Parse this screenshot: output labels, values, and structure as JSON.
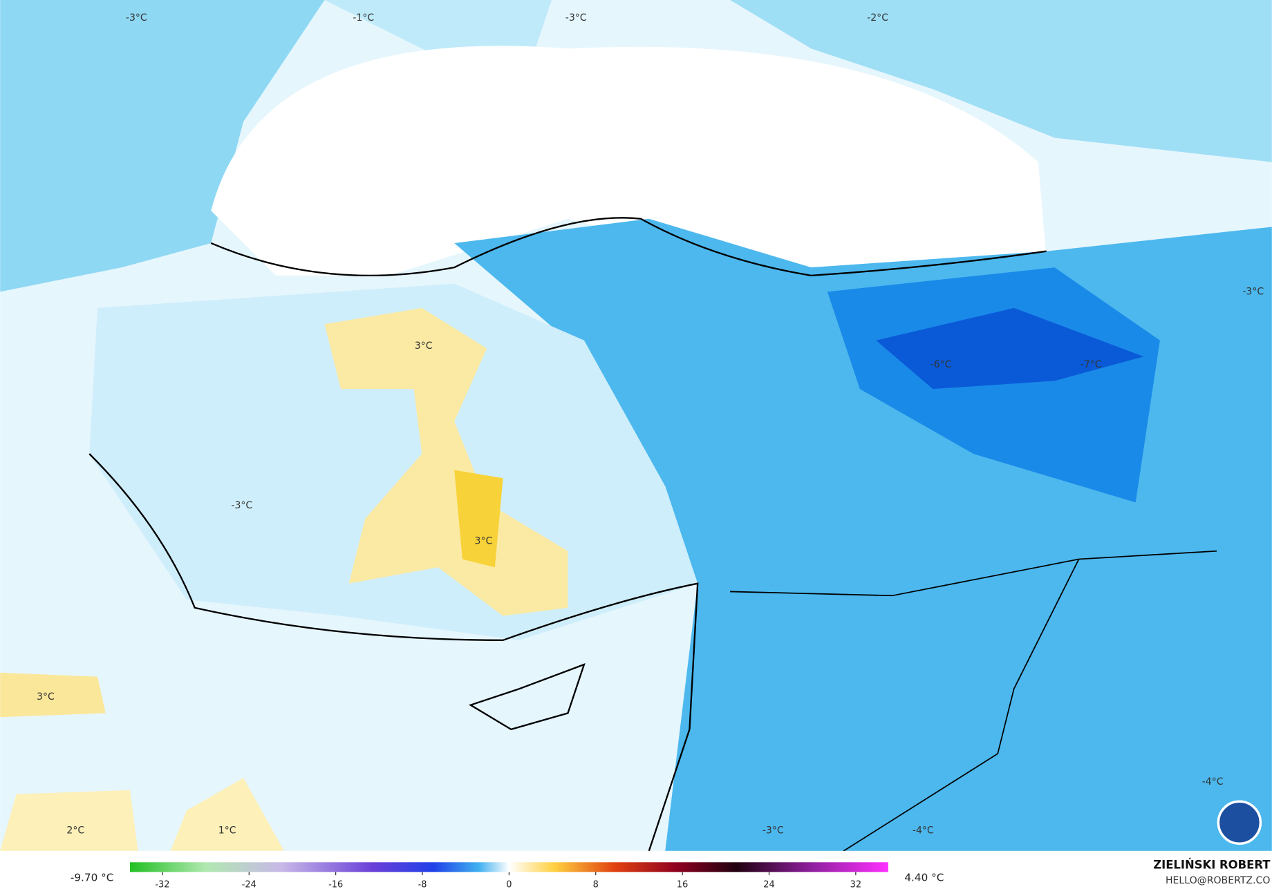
{
  "map_labels": [
    "-3°C",
    "-1°C",
    "-3°C",
    "-2°C",
    "3°C",
    "-6°C",
    "-7°C",
    "-3°C",
    "-3°C",
    "3°C",
    "3°C",
    "2°C",
    "1°C",
    "-3°C",
    "-4°C",
    "-4°C"
  ],
  "colorbar": {
    "ticks": [
      -32,
      -24,
      -16,
      -8,
      0,
      8,
      16,
      24,
      32
    ],
    "lim": [
      -35,
      35
    ],
    "min_label": "-9.70 °C",
    "max_label": "4.40 °C"
  },
  "credit": {
    "author": "ZIELIŃSKI ROBERT",
    "email": "HELLO@ROBERTZ.CO"
  }
}
